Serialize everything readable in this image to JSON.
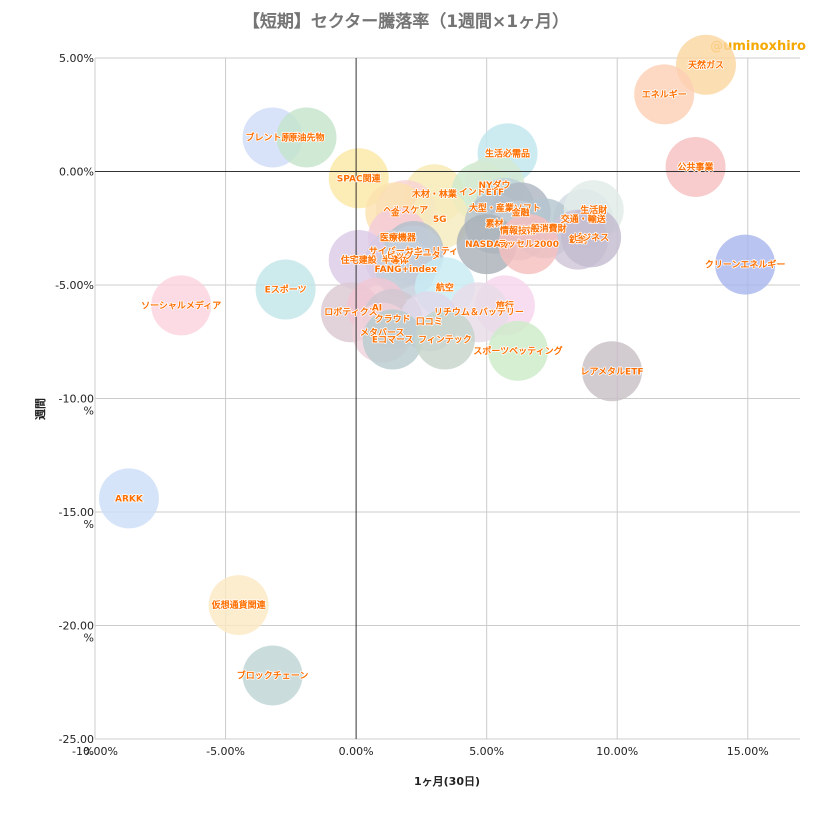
{
  "chart_data": {
    "type": "scatter",
    "title": "【短期】セクター騰落率（1週間×1ヶ月）",
    "credit": "@uminoxhiro",
    "xlabel": "1ヶ月(30日)",
    "ylabel": "週間",
    "xlim": [
      -10,
      17
    ],
    "ylim": [
      -25,
      5
    ],
    "grid": true,
    "x_ticks": [
      "-10.00%",
      "-5.00%",
      "0.00%",
      "5.00%",
      "10.00%",
      "15.00%"
    ],
    "y_ticks": [
      {
        "line1": "5.00%",
        "line2": ""
      },
      {
        "line1": "0.00%",
        "line2": ""
      },
      {
        "line1": "-5.00%",
        "line2": ""
      },
      {
        "line1": "-10.00",
        "line2": "%"
      },
      {
        "line1": "-15.00",
        "line2": "%"
      },
      {
        "line1": "-20.00",
        "line2": "%"
      },
      {
        "line1": "-25.00",
        "line2": "%"
      }
    ],
    "points": [
      {
        "label": "天然ガス",
        "x": 13.4,
        "y": 4.7,
        "color": "#fbd7a2"
      },
      {
        "label": "エネルギー",
        "x": 11.8,
        "y": 3.4,
        "color": "#fcd0b4"
      },
      {
        "label": "公共事業",
        "x": 13.0,
        "y": 0.2,
        "color": "#f7c1c1"
      },
      {
        "label": "クリーンエネルギー",
        "x": 14.9,
        "y": -4.1,
        "color": "#a9b7ee"
      },
      {
        "label": "ブレント原油",
        "x": -3.2,
        "y": 1.5,
        "color": "#cfdcf7"
      },
      {
        "label": "原油先物",
        "x": -1.9,
        "y": 1.5,
        "color": "#c4e4cc"
      },
      {
        "label": "SPAC関連",
        "x": 0.1,
        "y": -0.3,
        "color": "#fbe8a6"
      },
      {
        "label": "生活必需品",
        "x": 5.8,
        "y": 0.8,
        "color": "#bfe6ee"
      },
      {
        "label": "木材・林業",
        "x": 3.0,
        "y": -1.0,
        "color": "#f7eab3"
      },
      {
        "label": "インドETF",
        "x": 4.8,
        "y": -0.9,
        "color": "#cdeacd"
      },
      {
        "label": "ヘルスケア",
        "x": 1.9,
        "y": -1.7,
        "color": "#f8d3d3"
      },
      {
        "label": "金",
        "x": 1.5,
        "y": -1.8,
        "color": "#fbe2b0"
      },
      {
        "label": "5G",
        "x": 3.2,
        "y": -2.1,
        "color": "#f5ebbd"
      },
      {
        "label": "NYダウ",
        "x": 5.3,
        "y": -0.6,
        "color": "#d6e9d3"
      },
      {
        "label": "大型・産業ソフト",
        "x": 5.7,
        "y": -1.6,
        "color": "#bdd2d9"
      },
      {
        "label": "金融",
        "x": 6.3,
        "y": -1.8,
        "color": "#aeb7c2"
      },
      {
        "label": "素材",
        "x": 5.3,
        "y": -2.3,
        "color": "#b8c2cc"
      },
      {
        "label": "情報技術",
        "x": 6.2,
        "y": -2.6,
        "color": "#c4cdd6"
      },
      {
        "label": "交通・輸送",
        "x": 8.7,
        "y": -2.1,
        "color": "#d2dbe3"
      },
      {
        "label": "一般消費財",
        "x": 7.2,
        "y": -2.5,
        "color": "#b5c6d0"
      },
      {
        "label": "生活財",
        "x": 9.1,
        "y": -1.7,
        "color": "#e0ece8"
      },
      {
        "label": "鉄鋼",
        "x": 8.5,
        "y": -3.0,
        "color": "#cfc6d8"
      },
      {
        "label": "ビジネス",
        "x": 9.0,
        "y": -2.9,
        "color": "#c3bcd0"
      },
      {
        "label": "NASDAQ",
        "x": 5.0,
        "y": -3.2,
        "color": "#a9b1b8"
      },
      {
        "label": "ラッセル2000",
        "x": 6.6,
        "y": -3.2,
        "color": "#f6c0c0"
      },
      {
        "label": "医療機器",
        "x": 1.6,
        "y": -2.9,
        "color": "#f3cbd9"
      },
      {
        "label": "サイバーセキュリティ",
        "x": 2.2,
        "y": -3.5,
        "color": "#b3c0cc"
      },
      {
        "label": "半導体",
        "x": 1.5,
        "y": -3.9,
        "color": "#c9cfd6"
      },
      {
        "label": "ビッグデータ",
        "x": 2.2,
        "y": -3.7,
        "color": "#bfccd8"
      },
      {
        "label": "住宅建設",
        "x": 0.1,
        "y": -3.9,
        "color": "#dccbe6"
      },
      {
        "label": "FANG+index",
        "x": 1.9,
        "y": -4.3,
        "color": "#c5d0dc"
      },
      {
        "label": "航空",
        "x": 3.4,
        "y": -5.1,
        "color": "#c8ecf4"
      },
      {
        "label": "Eスポーツ",
        "x": -2.7,
        "y": -5.2,
        "color": "#c2e5e8"
      },
      {
        "label": "ソーシャルメディア",
        "x": -6.7,
        "y": -5.9,
        "color": "#fbd3de"
      },
      {
        "label": "旅行",
        "x": 5.7,
        "y": -5.9,
        "color": "#f6d6ee"
      },
      {
        "label": "ロボティクス",
        "x": -0.2,
        "y": -6.2,
        "color": "#dcc9d3"
      },
      {
        "label": "AI",
        "x": 0.8,
        "y": -6.0,
        "color": "#f0c7d3"
      },
      {
        "label": "リチウム＆バッテリー",
        "x": 4.7,
        "y": -6.2,
        "color": "#e8dce8"
      },
      {
        "label": "クラウド",
        "x": 1.4,
        "y": -6.5,
        "color": "#cfc7d1"
      },
      {
        "label": "口コミ",
        "x": 2.8,
        "y": -6.6,
        "color": "#dfd8ea"
      },
      {
        "label": "メタバース",
        "x": 1.0,
        "y": -7.1,
        "color": "#f0d3dd"
      },
      {
        "label": "Eコマース",
        "x": 1.4,
        "y": -7.4,
        "color": "#b8ccd0"
      },
      {
        "label": "フィンテック",
        "x": 3.4,
        "y": -7.4,
        "color": "#c6d4cb"
      },
      {
        "label": "スポーツベッティング",
        "x": 6.2,
        "y": -7.9,
        "color": "#cdebc9"
      },
      {
        "label": "レアメタルETF",
        "x": 9.8,
        "y": -8.8,
        "color": "#c8bfc6"
      },
      {
        "label": "ARKK",
        "x": -8.7,
        "y": -14.4,
        "color": "#cddef8"
      },
      {
        "label": "仮想通貨関連",
        "x": -4.5,
        "y": -19.1,
        "color": "#fde9c5"
      },
      {
        "label": "ブロックチェーン",
        "x": -3.2,
        "y": -22.2,
        "color": "#bed6d4"
      }
    ]
  }
}
